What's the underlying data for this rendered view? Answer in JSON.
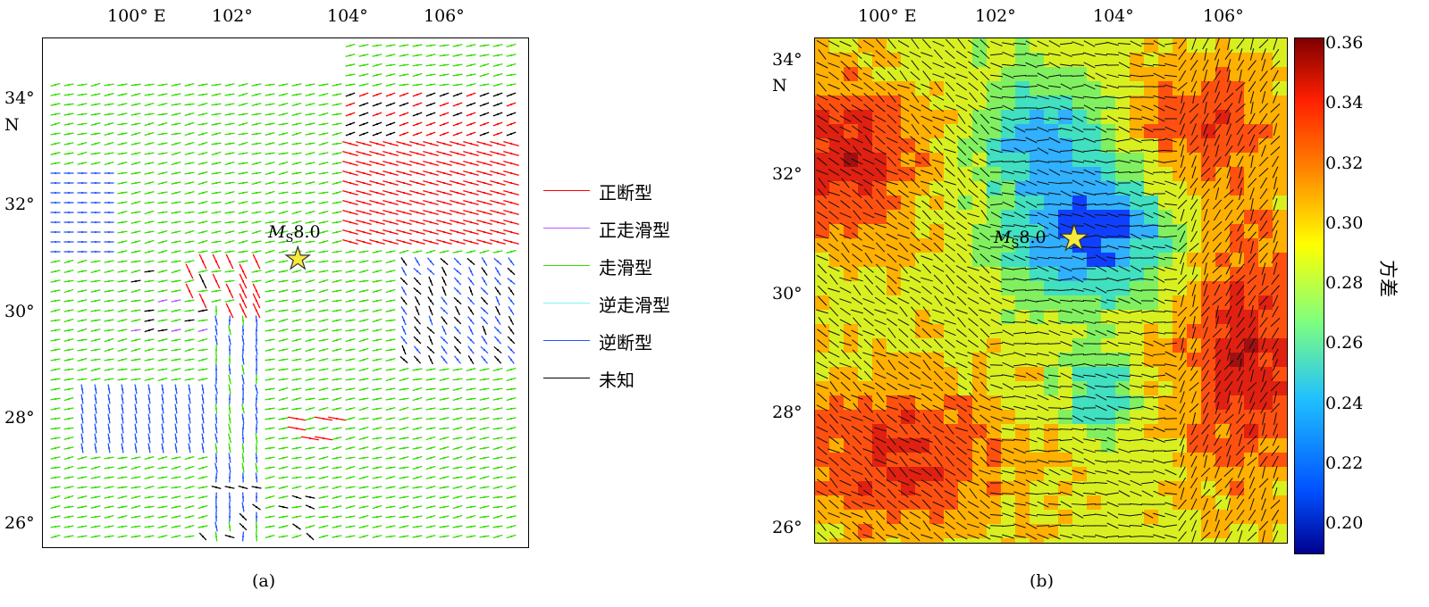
{
  "panel_a": {
    "caption": "(a)",
    "x_ticks": [
      "100° E",
      "102°",
      "104°",
      "106°"
    ],
    "y_ticks": [
      "34°",
      "32°",
      "30°",
      "28°",
      "26°"
    ],
    "y_unit": "N",
    "epicenter_label": "MS8.0",
    "epicenter_main": "M",
    "epicenter_sub": "S",
    "epicenter_value": "8.0"
  },
  "panel_b": {
    "caption": "(b)",
    "x_ticks": [
      "100° E",
      "102°",
      "104°",
      "106°"
    ],
    "y_ticks": [
      "34°",
      "32°",
      "30°",
      "28°",
      "26°"
    ],
    "y_unit": "N",
    "epicenter_main": "M",
    "epicenter_sub": "S",
    "epicenter_value": "8.0"
  },
  "legend": [
    {
      "label": "正断型",
      "color": "#ff0000"
    },
    {
      "label": "正走滑型",
      "color": "#b05cff"
    },
    {
      "label": "走滑型",
      "color": "#33dd00"
    },
    {
      "label": "逆走滑型",
      "color": "#7ff3f3"
    },
    {
      "label": "逆断型",
      "color": "#2255ff"
    },
    {
      "label": "未知",
      "color": "#000000"
    }
  ],
  "colorbar": {
    "label": "方差",
    "ticks": [
      "0.36",
      "0.34",
      "0.32",
      "0.30",
      "0.28",
      "0.26",
      "0.24",
      "0.22",
      "0.20"
    ],
    "min": 0.19,
    "max": 0.36,
    "colors": [
      "#00008f",
      "#0050ff",
      "#20c0ff",
      "#7fff7f",
      "#ffff00",
      "#ff8000",
      "#ff2000",
      "#800000"
    ]
  }
}
